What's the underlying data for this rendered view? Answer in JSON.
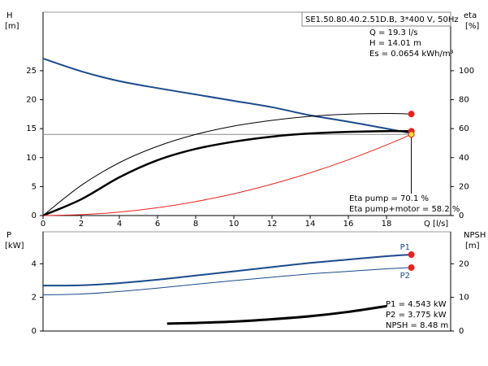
{
  "chart_data": [
    {
      "type": "line",
      "ylabel": "H",
      "yunit": "[m]",
      "y2label": "eta",
      "y2unit": "[%]",
      "xlabel": "Q [l/s]",
      "xlim": [
        0,
        21.36
      ],
      "xticks": [
        0,
        2,
        4,
        6,
        8,
        10,
        12,
        14,
        16,
        18
      ],
      "ylim": [
        0,
        35.1
      ],
      "yticks": [
        0,
        5,
        10,
        15,
        20,
        25
      ],
      "y2lim": [
        0,
        140.4
      ],
      "y2ticks": [
        0,
        20,
        40,
        60,
        80,
        100
      ],
      "x": [
        0,
        2,
        4,
        6,
        8,
        10,
        12,
        14,
        16,
        18,
        19.3
      ],
      "series": [
        {
          "color": "#1a4a8a",
          "width": 2,
          "axis": "y",
          "values": [
            27.1,
            24.9,
            23.2,
            22,
            20.9,
            19.8,
            18.7,
            17.3,
            16.2,
            15,
            14.2
          ]
        },
        {
          "color": "#000000",
          "width": 1,
          "axis": "y2",
          "values": [
            0,
            20.8,
            36.5,
            47.8,
            56,
            61.8,
            65.7,
            68.5,
            70,
            70.5,
            70.1
          ],
          "end_color": "#e8221c"
        },
        {
          "color": "#000000",
          "width": 2.5,
          "axis": "y2",
          "values": [
            0,
            11.2,
            26.4,
            38.2,
            46,
            51,
            54.5,
            56.7,
            57.8,
            58.3,
            58.2
          ],
          "end_color": "#e8221c"
        },
        {
          "color": "#e8221c",
          "width": 1,
          "axis": "y",
          "values": [
            0,
            0.15,
            0.6,
            1.35,
            2.41,
            3.76,
            5.42,
            7.37,
            9.63,
            12.19,
            14.01
          ],
          "end_color": "#f5e23a"
        }
      ],
      "model": "SE1.50.80.40.2.51D.B, 3*400 V, 50Hz",
      "annotations": [
        "Q = 19.3 l/s",
        "H = 14.01 m",
        "Es = 0.0654 kWh/m³"
      ],
      "duty_annotations": [
        "Eta pump = 70.1 %",
        "Eta pump+motor = 58.2 %"
      ]
    },
    {
      "type": "line",
      "ylabel": "P",
      "yunit": "[kW]",
      "y2label": "NPSH",
      "y2unit": "[m]",
      "xlim": [
        0,
        21.36
      ],
      "ylim": [
        0,
        5.9
      ],
      "yticks": [
        0,
        2,
        4
      ],
      "y2lim": [
        0,
        29.5
      ],
      "y2ticks": [
        0,
        10,
        20
      ],
      "x": [
        0,
        2,
        4,
        6,
        8,
        10,
        12,
        14,
        16,
        18,
        19.3
      ],
      "series": [
        {
          "name": "P1",
          "color": "#1a4a8a",
          "width": 2,
          "axis": "y",
          "values": [
            2.7,
            2.72,
            2.85,
            3.05,
            3.3,
            3.55,
            3.8,
            4.05,
            4.25,
            4.45,
            4.543
          ],
          "end_color": "#e8221c"
        },
        {
          "name": "P2",
          "color": "#1a4a8a",
          "width": 1,
          "axis": "y",
          "values": [
            2.15,
            2.2,
            2.35,
            2.55,
            2.78,
            3.0,
            3.2,
            3.4,
            3.55,
            3.7,
            3.775
          ],
          "end_color": "#e8221c"
        },
        {
          "color": "#000000",
          "width": 3,
          "axis": "y2",
          "x": [
            6.5,
            8,
            10,
            12,
            14,
            16,
            18
          ],
          "values": [
            2.2,
            2.4,
            2.8,
            3.5,
            4.4,
            5.7,
            7.4
          ]
        }
      ],
      "annotations": [
        "P1 = 4.543 kW",
        "P2 = 3.775 kW",
        "NPSH = 8.48 m"
      ]
    }
  ]
}
